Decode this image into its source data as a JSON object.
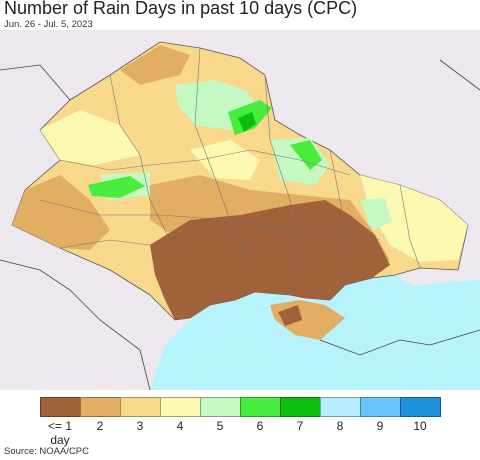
{
  "header": {
    "title": "Number of Rain Days in past 10 days (CPC)",
    "subtitle": "Jun. 26 - Jul. 5, 2023"
  },
  "legend": {
    "items": [
      {
        "label": "<= 1 day",
        "color": "#a0623a"
      },
      {
        "label": "2",
        "color": "#e1ae64"
      },
      {
        "label": "3",
        "color": "#f8d98c"
      },
      {
        "label": "4",
        "color": "#fbf8b2"
      },
      {
        "label": "5",
        "color": "#c5f8c3"
      },
      {
        "label": "6",
        "color": "#48ec3c"
      },
      {
        "label": "7",
        "color": "#0cbf0c"
      },
      {
        "label": "8",
        "color": "#b6ecff"
      },
      {
        "label": "9",
        "color": "#68c4fb"
      },
      {
        "label": "10",
        "color": "#1f90dd"
      }
    ]
  },
  "map": {
    "sea_color": "#b6f3fc",
    "land_outside_color": "#ede8ee"
  },
  "footer": {
    "source": "Source: NOAA/CPC"
  }
}
